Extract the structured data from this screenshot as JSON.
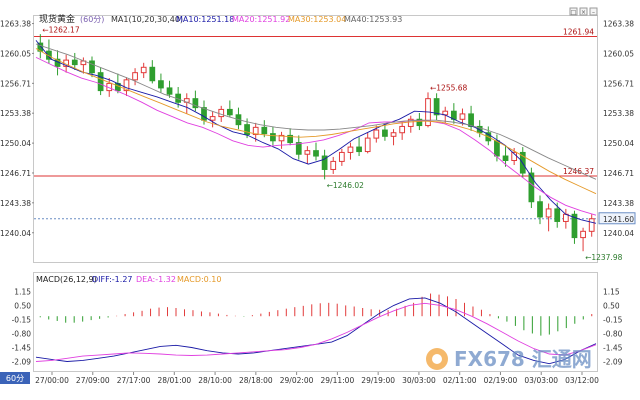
{
  "header": {
    "symbol": "现货黄金",
    "period": "(60分)",
    "ma_label": "MA1(10,20,30,40)",
    "ma10": "MA10:1251.18",
    "ma20": "MA20:1251.92",
    "ma30": "MA30:1253.04",
    "ma40": "MA40:1253.93"
  },
  "macd_header": {
    "label": "MACD(26,12,9)",
    "diff": "DIFF:-1.27",
    "dea": "DEA:-1.32",
    "macd": "MACD:0.10"
  },
  "period_badge": "60分",
  "watermark": "FX678 汇通网",
  "colors": {
    "up": "#e23a3a",
    "down": "#2f9e2f",
    "ma10": "#1a1aa6",
    "ma20": "#e040e0",
    "ma30": "#e59a2a",
    "ma40": "#888888",
    "hline": "#d33",
    "diff": "#1a1aa6",
    "dea": "#e040e0"
  },
  "chart_data": [
    {
      "type": "candlestick",
      "ylim": [
        1237.0,
        1264.0
      ],
      "y_ticks": [
        1263.38,
        1260.05,
        1256.71,
        1253.38,
        1250.04,
        1246.71,
        1243.38,
        1240.04
      ],
      "x_ticks": [
        "27/00:00",
        "27/09:00",
        "27/17:00",
        "28/01:00",
        "28/10:00",
        "28/18:00",
        "29/02:00",
        "29/11:00",
        "29/19:00",
        "30/03:00",
        "02/11:00",
        "02/19:00",
        "03/03:00",
        "03/12:00"
      ],
      "hlines": [
        {
          "value": 1261.94,
          "label": "1261.94"
        },
        {
          "value": 1246.37,
          "label": "1246.37"
        }
      ],
      "dashed_line": {
        "value": 1241.6,
        "label": "1241.60"
      },
      "annotations": [
        {
          "label": "1262.17",
          "value": 1262.17
        },
        {
          "label": "1255.68",
          "value": 1255.68
        },
        {
          "label": "1246.02",
          "value": 1246.02
        },
        {
          "label": "1237.98",
          "value": 1237.98
        }
      ],
      "candles": [
        [
          1261.2,
          1262.2,
          1259.5,
          1260.3
        ],
        [
          1260.3,
          1261.6,
          1258.9,
          1259.4
        ],
        [
          1259.4,
          1260.4,
          1257.6,
          1258.6
        ],
        [
          1258.6,
          1259.9,
          1257.9,
          1259.3
        ],
        [
          1259.3,
          1260.1,
          1258.2,
          1258.8
        ],
        [
          1258.8,
          1259.6,
          1257.8,
          1259.2
        ],
        [
          1259.2,
          1259.7,
          1257.4,
          1257.9
        ],
        [
          1257.9,
          1258.5,
          1255.4,
          1255.9
        ],
        [
          1255.9,
          1257.3,
          1255.2,
          1256.7
        ],
        [
          1256.7,
          1257.8,
          1255.6,
          1255.9
        ],
        [
          1255.9,
          1257.4,
          1255.3,
          1257.1
        ],
        [
          1257.1,
          1258.4,
          1256.5,
          1257.9
        ],
        [
          1257.9,
          1259.0,
          1257.3,
          1258.5
        ],
        [
          1258.5,
          1259.3,
          1256.7,
          1257.0
        ],
        [
          1257.0,
          1257.8,
          1255.7,
          1256.2
        ],
        [
          1256.2,
          1257.0,
          1255.1,
          1255.5
        ],
        [
          1255.5,
          1256.3,
          1254.0,
          1254.6
        ],
        [
          1254.6,
          1255.6,
          1253.3,
          1255.0
        ],
        [
          1255.0,
          1255.9,
          1253.6,
          1254.0
        ],
        [
          1254.0,
          1254.8,
          1252.1,
          1252.6
        ],
        [
          1252.6,
          1253.6,
          1251.8,
          1253.0
        ],
        [
          1253.0,
          1254.2,
          1252.4,
          1253.8
        ],
        [
          1253.8,
          1254.8,
          1252.9,
          1253.2
        ],
        [
          1253.2,
          1254.0,
          1251.6,
          1252.1
        ],
        [
          1252.1,
          1252.8,
          1250.6,
          1251.0
        ],
        [
          1251.0,
          1252.3,
          1250.2,
          1251.8
        ],
        [
          1251.8,
          1252.6,
          1250.7,
          1251.1
        ],
        [
          1251.1,
          1251.9,
          1249.8,
          1250.3
        ],
        [
          1250.3,
          1251.3,
          1249.4,
          1250.9
        ],
        [
          1250.9,
          1251.7,
          1249.8,
          1250.1
        ],
        [
          1250.1,
          1250.9,
          1248.2,
          1248.8
        ],
        [
          1248.8,
          1249.7,
          1247.7,
          1249.2
        ],
        [
          1249.2,
          1250.1,
          1248.1,
          1248.6
        ],
        [
          1248.6,
          1249.3,
          1246.0,
          1247.1
        ],
        [
          1247.1,
          1248.5,
          1246.6,
          1248.0
        ],
        [
          1248.0,
          1249.4,
          1247.5,
          1249.0
        ],
        [
          1249.0,
          1250.1,
          1248.2,
          1249.6
        ],
        [
          1249.6,
          1250.7,
          1248.6,
          1249.1
        ],
        [
          1249.1,
          1251.2,
          1248.9,
          1250.6
        ],
        [
          1250.6,
          1252.0,
          1250.1,
          1251.5
        ],
        [
          1251.5,
          1252.2,
          1250.3,
          1250.8
        ],
        [
          1250.8,
          1251.6,
          1249.8,
          1251.2
        ],
        [
          1251.2,
          1252.4,
          1250.4,
          1251.9
        ],
        [
          1251.9,
          1253.1,
          1251.2,
          1252.7
        ],
        [
          1252.7,
          1253.4,
          1251.5,
          1252.0
        ],
        [
          1252.0,
          1255.7,
          1251.8,
          1255.0
        ],
        [
          1255.0,
          1255.6,
          1252.6,
          1253.2
        ],
        [
          1253.2,
          1254.1,
          1252.3,
          1253.6
        ],
        [
          1253.6,
          1254.5,
          1252.2,
          1252.7
        ],
        [
          1252.7,
          1253.9,
          1252.0,
          1253.3
        ],
        [
          1253.3,
          1254.2,
          1251.4,
          1251.9
        ],
        [
          1251.9,
          1252.6,
          1250.7,
          1251.2
        ],
        [
          1251.2,
          1251.9,
          1249.8,
          1250.3
        ],
        [
          1250.3,
          1251.0,
          1248.0,
          1248.6
        ],
        [
          1248.6,
          1249.8,
          1247.4,
          1248.1
        ],
        [
          1248.1,
          1249.5,
          1247.6,
          1249.0
        ],
        [
          1249.0,
          1249.6,
          1246.2,
          1246.7
        ],
        [
          1246.7,
          1247.3,
          1242.8,
          1243.5
        ],
        [
          1243.5,
          1244.2,
          1241.0,
          1241.8
        ],
        [
          1241.8,
          1243.3,
          1240.2,
          1242.7
        ],
        [
          1242.7,
          1243.4,
          1240.6,
          1241.3
        ],
        [
          1241.3,
          1242.7,
          1240.5,
          1242.1
        ],
        [
          1242.1,
          1242.5,
          1238.8,
          1239.5
        ],
        [
          1239.5,
          1240.6,
          1237.98,
          1240.2
        ],
        [
          1240.2,
          1242.1,
          1239.6,
          1241.6
        ]
      ],
      "ma_series": [
        {
          "name": "MA10",
          "values": [
            1261.5,
            1259.4,
            1258.7,
            1258.0,
            1257.6,
            1257.0,
            1256.2,
            1255.7,
            1255.2,
            1254.6,
            1254.0,
            1253.1,
            1252.1,
            1251.3,
            1250.9,
            1250.1,
            1249.4,
            1248.3,
            1247.7,
            1248.2,
            1249.3,
            1250.5,
            1251.3,
            1252.1,
            1252.7,
            1253.6,
            1253.5,
            1253.2,
            1252.4,
            1251.8,
            1250.9,
            1249.8,
            1248.2,
            1245.6,
            1243.7,
            1242.1,
            1241.5,
            1241.1
          ]
        },
        {
          "name": "MA20",
          "values": [
            1259.6,
            1258.8,
            1258.0,
            1257.3,
            1256.8,
            1256.1,
            1255.4,
            1254.6,
            1253.7,
            1253.0,
            1252.3,
            1251.8,
            1251.1,
            1250.3,
            1249.8,
            1249.6,
            1249.8,
            1249.9,
            1250.1,
            1250.4,
            1250.9,
            1251.5,
            1252.3,
            1252.4,
            1252.4,
            1252.6,
            1252.5,
            1252.2,
            1251.5,
            1250.4,
            1249.2,
            1247.7,
            1246.4,
            1245.1,
            1244.0,
            1243.1,
            1242.5,
            1242.0
          ]
        },
        {
          "name": "MA30",
          "values": [
            1260.6,
            1259.6,
            1258.8,
            1258.0,
            1257.3,
            1256.6,
            1255.9,
            1255.2,
            1254.5,
            1253.8,
            1253.1,
            1252.4,
            1251.9,
            1251.5,
            1251.1,
            1250.9,
            1250.8,
            1250.7,
            1250.8,
            1251.0,
            1251.3,
            1251.6,
            1251.9,
            1252.2,
            1252.4,
            1252.5,
            1252.4,
            1252.0,
            1251.5,
            1250.8,
            1249.9,
            1248.9,
            1247.9,
            1246.9,
            1246.0,
            1245.2,
            1244.4
          ]
        },
        {
          "name": "MA40",
          "values": [
            1261.1,
            1260.5,
            1259.9,
            1259.2,
            1258.5,
            1257.8,
            1257.1,
            1256.3,
            1255.5,
            1254.9,
            1254.2,
            1253.6,
            1253.0,
            1252.5,
            1252.1,
            1251.8,
            1251.6,
            1251.5,
            1251.5,
            1251.6,
            1251.8,
            1252.0,
            1252.3,
            1252.5,
            1252.6,
            1252.6,
            1252.4,
            1252.1,
            1251.6,
            1251.0,
            1250.2,
            1249.3,
            1248.4,
            1247.6,
            1246.8,
            1246.0
          ]
        }
      ]
    },
    {
      "type": "macd",
      "ylim": [
        -2.4,
        1.4
      ],
      "y_ticks": [
        "1.15",
        "0.50",
        "-0.15",
        "-0.80",
        "-1.45",
        "-2.09"
      ],
      "right_ticks": [
        "1.15",
        "0.50",
        "-0.15",
        "-0.80",
        "-1.45",
        "-2.09"
      ],
      "histogram": [
        -0.05,
        -0.15,
        -0.22,
        -0.3,
        -0.3,
        -0.25,
        -0.18,
        -0.12,
        -0.06,
        0.02,
        0.1,
        0.18,
        0.25,
        0.35,
        0.4,
        0.42,
        0.38,
        0.32,
        0.28,
        0.22,
        0.18,
        0.12,
        0.06,
        0.02,
        -0.02,
        0.05,
        0.12,
        0.2,
        0.28,
        0.35,
        0.42,
        0.48,
        0.55,
        0.6,
        0.62,
        0.58,
        0.5,
        0.45,
        0.38,
        0.32,
        0.3,
        0.28,
        0.35,
        0.48,
        0.62,
        0.9,
        1.05,
        1.0,
        0.92,
        0.8,
        0.62,
        0.45,
        0.3,
        0.1,
        -0.1,
        -0.25,
        -0.45,
        -0.65,
        -0.8,
        -0.9,
        -0.85,
        -0.7,
        -0.55,
        -0.35,
        -0.15,
        0.1
      ],
      "diff": [
        -1.9,
        -2.0,
        -2.1,
        -2.05,
        -1.95,
        -1.85,
        -1.7,
        -1.55,
        -1.4,
        -1.35,
        -1.45,
        -1.6,
        -1.7,
        -1.75,
        -1.7,
        -1.6,
        -1.5,
        -1.4,
        -1.3,
        -1.2,
        -0.9,
        -0.4,
        0.1,
        0.5,
        0.8,
        0.85,
        0.6,
        0.2,
        -0.3,
        -0.8,
        -1.3,
        -1.8,
        -2.05,
        -2.2,
        -2.0,
        -1.6,
        -1.27
      ],
      "dea": [
        -2.1,
        -2.05,
        -1.95,
        -1.85,
        -1.8,
        -1.75,
        -1.7,
        -1.72,
        -1.75,
        -1.8,
        -1.82,
        -1.8,
        -1.75,
        -1.7,
        -1.65,
        -1.6,
        -1.55,
        -1.45,
        -1.3,
        -1.05,
        -0.75,
        -0.4,
        -0.05,
        0.25,
        0.5,
        0.6,
        0.5,
        0.3,
        0.0,
        -0.35,
        -0.75,
        -1.15,
        -1.5,
        -1.75,
        -1.8,
        -1.6,
        -1.32
      ]
    }
  ]
}
